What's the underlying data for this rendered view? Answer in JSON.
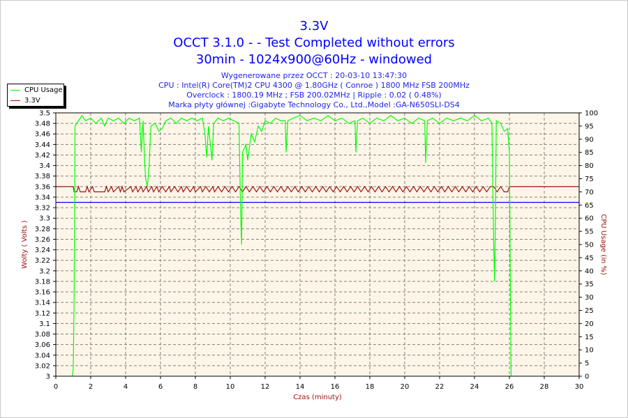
{
  "chart_data": {
    "type": "line",
    "title": "3.3V",
    "subtitle_lines": [
      "OCCT 3.1.0 -  - Test Completed without errors",
      "30min - 1024x900@60Hz - windowed"
    ],
    "info_lines": [
      "Wygenerowane przez OCCT : 20-03-10 13:47:30",
      "CPU : Intel(R) Core(TM)2 CPU 4300 @ 1.80GHz ( Conroe ) 1800 MHz FSB 200MHz",
      "Overclock : 1800.19 MHz ; FSB 200.02MHz | Ripple : 0.02 ( 0.48%)",
      "Marka płyty głównej :Gigabyte Technology Co., Ltd.,Model :GA-N650SLI-DS4"
    ],
    "xlabel": "Czas (minuty)",
    "ylabel": "Wolty ( Volts )",
    "y2label": "CPU Usage (in %)",
    "xlim": [
      0,
      30
    ],
    "ylim": [
      3.0,
      3.5
    ],
    "y2lim": [
      0,
      100
    ],
    "xticks": [
      "0",
      "2",
      "4",
      "6",
      "8",
      "10",
      "12",
      "14",
      "16",
      "18",
      "20",
      "22",
      "24",
      "26",
      "28",
      "30"
    ],
    "yticks": [
      "3",
      "3.02",
      "3.04",
      "3.06",
      "3.08",
      "3.1",
      "3.12",
      "3.14",
      "3.16",
      "3.18",
      "3.2",
      "3.22",
      "3.24",
      "3.26",
      "3.28",
      "3.3",
      "3.32",
      "3.34",
      "3.36",
      "3.38",
      "3.4",
      "3.42",
      "3.44",
      "3.46",
      "3.48",
      "3.5"
    ],
    "y2ticks": [
      "0",
      "5",
      "10",
      "15",
      "20",
      "25",
      "30",
      "35",
      "40",
      "45",
      "50",
      "55",
      "60",
      "65",
      "70",
      "75",
      "80",
      "85",
      "90",
      "95",
      "100"
    ],
    "grid": true,
    "legend_position": "top-left",
    "legend": [
      {
        "name": "CPU Usage",
        "color": "#00ff00"
      },
      {
        "name": "3.3V",
        "color": "#a01010"
      }
    ],
    "reference_line": {
      "value": 3.33,
      "color": "#0000ff"
    },
    "colors": {
      "plot_bg": "#fdf6e8",
      "cpu": "#00ff00",
      "volt": "#a01010",
      "title": "#0000ff",
      "axis_label": "#a01010"
    },
    "series": [
      {
        "name": "CPU Usage",
        "axis": "right",
        "points": [
          [
            0.95,
            0
          ],
          [
            1.0,
            3
          ],
          [
            1.05,
            30
          ],
          [
            1.1,
            95
          ],
          [
            1.3,
            97
          ],
          [
            1.5,
            99
          ],
          [
            1.7,
            97
          ],
          [
            2.0,
            98
          ],
          [
            2.3,
            96
          ],
          [
            2.6,
            98
          ],
          [
            2.8,
            95
          ],
          [
            3.0,
            98
          ],
          [
            3.3,
            97
          ],
          [
            3.6,
            98
          ],
          [
            3.9,
            96
          ],
          [
            4.2,
            98
          ],
          [
            4.5,
            97
          ],
          [
            4.8,
            98
          ],
          [
            4.9,
            85
          ],
          [
            5.0,
            97
          ],
          [
            5.1,
            80
          ],
          [
            5.15,
            75
          ],
          [
            5.25,
            72
          ],
          [
            5.35,
            80
          ],
          [
            5.45,
            95
          ],
          [
            5.7,
            96
          ],
          [
            5.9,
            93
          ],
          [
            6.1,
            94
          ],
          [
            6.3,
            97
          ],
          [
            6.6,
            98
          ],
          [
            6.9,
            96
          ],
          [
            7.2,
            98
          ],
          [
            7.5,
            97
          ],
          [
            7.8,
            98
          ],
          [
            8.1,
            97
          ],
          [
            8.4,
            98
          ],
          [
            8.55,
            92
          ],
          [
            8.65,
            83
          ],
          [
            8.75,
            95
          ],
          [
            8.95,
            82
          ],
          [
            9.05,
            96
          ],
          [
            9.3,
            98
          ],
          [
            9.6,
            97
          ],
          [
            9.9,
            98
          ],
          [
            10.2,
            97
          ],
          [
            10.5,
            96
          ],
          [
            10.6,
            60
          ],
          [
            10.65,
            50
          ],
          [
            10.7,
            85
          ],
          [
            10.9,
            88
          ],
          [
            11.0,
            82
          ],
          [
            11.2,
            92
          ],
          [
            11.4,
            89
          ],
          [
            11.6,
            95
          ],
          [
            11.8,
            93
          ],
          [
            12.0,
            97
          ],
          [
            12.3,
            96
          ],
          [
            12.6,
            98
          ],
          [
            12.9,
            97
          ],
          [
            13.15,
            97
          ],
          [
            13.2,
            85
          ],
          [
            13.3,
            97
          ],
          [
            13.6,
            98
          ],
          [
            14.0,
            99
          ],
          [
            14.4,
            97
          ],
          [
            14.8,
            98
          ],
          [
            15.2,
            97
          ],
          [
            15.6,
            99
          ],
          [
            16.0,
            97
          ],
          [
            16.4,
            98
          ],
          [
            16.8,
            96
          ],
          [
            17.15,
            97
          ],
          [
            17.2,
            85
          ],
          [
            17.3,
            97
          ],
          [
            17.6,
            98
          ],
          [
            18.0,
            96
          ],
          [
            18.4,
            98
          ],
          [
            18.8,
            97
          ],
          [
            19.2,
            99
          ],
          [
            19.6,
            97
          ],
          [
            20.0,
            98
          ],
          [
            20.4,
            96
          ],
          [
            20.8,
            98
          ],
          [
            21.15,
            97
          ],
          [
            21.2,
            81
          ],
          [
            21.3,
            97
          ],
          [
            21.6,
            98
          ],
          [
            22.0,
            96
          ],
          [
            22.4,
            98
          ],
          [
            22.8,
            97
          ],
          [
            23.2,
            98
          ],
          [
            23.6,
            97
          ],
          [
            24.0,
            99
          ],
          [
            24.4,
            97
          ],
          [
            24.8,
            98
          ],
          [
            25.0,
            96
          ],
          [
            25.1,
            50
          ],
          [
            25.15,
            36
          ],
          [
            25.2,
            60
          ],
          [
            25.25,
            97
          ],
          [
            25.5,
            96
          ],
          [
            25.7,
            93
          ],
          [
            25.9,
            94
          ],
          [
            26.0,
            85
          ],
          [
            26.05,
            40
          ],
          [
            26.1,
            0
          ]
        ]
      },
      {
        "name": "3.3V",
        "axis": "left",
        "points": [
          [
            0,
            3.36
          ],
          [
            1.0,
            3.36
          ],
          [
            1.05,
            3.35
          ],
          [
            1.2,
            3.35
          ],
          [
            1.3,
            3.36
          ],
          [
            1.4,
            3.35
          ],
          [
            1.7,
            3.35
          ],
          [
            1.8,
            3.36
          ],
          [
            1.9,
            3.35
          ],
          [
            2.1,
            3.36
          ],
          [
            2.2,
            3.35
          ],
          [
            2.8,
            3.35
          ],
          [
            2.9,
            3.36
          ],
          [
            3.0,
            3.35
          ],
          [
            3.2,
            3.36
          ],
          [
            3.3,
            3.35
          ],
          [
            3.6,
            3.36
          ],
          [
            3.7,
            3.35
          ],
          [
            3.8,
            3.36
          ],
          [
            3.9,
            3.35
          ],
          [
            4.3,
            3.36
          ],
          [
            4.4,
            3.35
          ],
          [
            4.6,
            3.36
          ],
          [
            4.7,
            3.35
          ],
          [
            4.9,
            3.36
          ],
          [
            5.0,
            3.35
          ],
          [
            5.2,
            3.36
          ],
          [
            5.3,
            3.35
          ],
          [
            5.5,
            3.36
          ],
          [
            5.6,
            3.35
          ],
          [
            5.8,
            3.36
          ],
          [
            5.9,
            3.35
          ],
          [
            6.1,
            3.36
          ],
          [
            6.3,
            3.35
          ],
          [
            6.5,
            3.36
          ],
          [
            6.6,
            3.35
          ],
          [
            6.8,
            3.36
          ],
          [
            7.0,
            3.35
          ],
          [
            7.2,
            3.36
          ],
          [
            7.3,
            3.35
          ],
          [
            7.5,
            3.36
          ],
          [
            7.7,
            3.35
          ],
          [
            7.9,
            3.36
          ],
          [
            8.0,
            3.35
          ],
          [
            8.3,
            3.36
          ],
          [
            8.4,
            3.35
          ],
          [
            8.6,
            3.36
          ],
          [
            8.8,
            3.35
          ],
          [
            9.0,
            3.36
          ],
          [
            9.1,
            3.35
          ],
          [
            9.3,
            3.36
          ],
          [
            9.5,
            3.35
          ],
          [
            9.7,
            3.36
          ],
          [
            9.9,
            3.35
          ],
          [
            10.1,
            3.36
          ],
          [
            10.3,
            3.35
          ],
          [
            10.5,
            3.36
          ],
          [
            10.7,
            3.35
          ],
          [
            10.9,
            3.36
          ],
          [
            11.1,
            3.35
          ],
          [
            11.3,
            3.36
          ],
          [
            11.5,
            3.35
          ],
          [
            11.7,
            3.36
          ],
          [
            11.9,
            3.35
          ],
          [
            12.1,
            3.36
          ],
          [
            12.3,
            3.35
          ],
          [
            12.5,
            3.36
          ],
          [
            12.7,
            3.35
          ],
          [
            12.9,
            3.36
          ],
          [
            13.1,
            3.35
          ],
          [
            13.3,
            3.36
          ],
          [
            13.5,
            3.35
          ],
          [
            13.7,
            3.36
          ],
          [
            13.9,
            3.35
          ],
          [
            14.1,
            3.36
          ],
          [
            14.3,
            3.35
          ],
          [
            14.5,
            3.36
          ],
          [
            14.7,
            3.35
          ],
          [
            14.9,
            3.36
          ],
          [
            15.1,
            3.35
          ],
          [
            15.3,
            3.36
          ],
          [
            15.5,
            3.35
          ],
          [
            15.7,
            3.36
          ],
          [
            15.9,
            3.35
          ],
          [
            16.1,
            3.36
          ],
          [
            16.3,
            3.35
          ],
          [
            16.5,
            3.36
          ],
          [
            16.7,
            3.35
          ],
          [
            16.9,
            3.36
          ],
          [
            17.1,
            3.35
          ],
          [
            17.3,
            3.36
          ],
          [
            17.5,
            3.35
          ],
          [
            17.7,
            3.36
          ],
          [
            17.9,
            3.35
          ],
          [
            18.1,
            3.36
          ],
          [
            18.3,
            3.35
          ],
          [
            18.5,
            3.36
          ],
          [
            18.7,
            3.35
          ],
          [
            18.9,
            3.36
          ],
          [
            19.1,
            3.35
          ],
          [
            19.3,
            3.36
          ],
          [
            19.5,
            3.35
          ],
          [
            19.7,
            3.36
          ],
          [
            19.9,
            3.35
          ],
          [
            20.1,
            3.36
          ],
          [
            20.3,
            3.35
          ],
          [
            20.5,
            3.36
          ],
          [
            20.7,
            3.35
          ],
          [
            20.9,
            3.36
          ],
          [
            21.1,
            3.35
          ],
          [
            21.3,
            3.36
          ],
          [
            21.5,
            3.35
          ],
          [
            21.7,
            3.36
          ],
          [
            21.9,
            3.35
          ],
          [
            22.1,
            3.36
          ],
          [
            22.3,
            3.35
          ],
          [
            22.5,
            3.36
          ],
          [
            22.7,
            3.35
          ],
          [
            22.9,
            3.36
          ],
          [
            23.1,
            3.35
          ],
          [
            23.3,
            3.36
          ],
          [
            23.5,
            3.35
          ],
          [
            23.7,
            3.36
          ],
          [
            23.9,
            3.35
          ],
          [
            24.1,
            3.36
          ],
          [
            24.3,
            3.35
          ],
          [
            24.5,
            3.36
          ],
          [
            24.7,
            3.35
          ],
          [
            24.9,
            3.36
          ],
          [
            25.1,
            3.36
          ],
          [
            25.3,
            3.35
          ],
          [
            25.5,
            3.36
          ],
          [
            25.7,
            3.35
          ],
          [
            25.9,
            3.35
          ],
          [
            26.0,
            3.36
          ],
          [
            30,
            3.36
          ]
        ]
      }
    ]
  }
}
